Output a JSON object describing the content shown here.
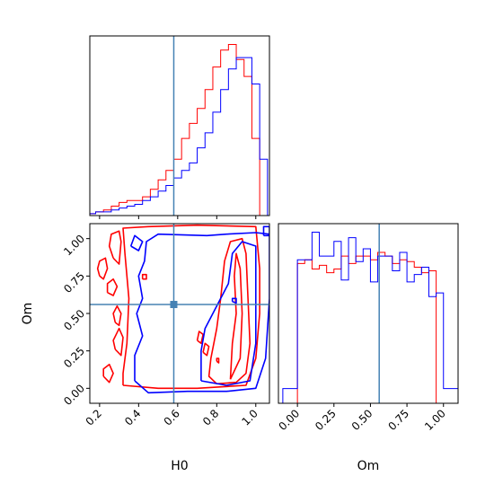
{
  "chart_data": {
    "type": "corner",
    "parameters": [
      "H0",
      "Om"
    ],
    "truth": {
      "H0": 0.58,
      "Om": 0.56
    },
    "colors": {
      "red": "#ff0000",
      "blue": "#0000ff",
      "truth": "#4682b4"
    },
    "panels": [
      {
        "id": "H0-hist",
        "type": "histogram",
        "xlim": [
          0.15,
          1.07
        ],
        "x_ticks": [
          0.2,
          0.4,
          0.6,
          0.8,
          1.0
        ],
        "show_tick_labels": false,
        "bin_edges": [
          0.1,
          0.14,
          0.18,
          0.22,
          0.26,
          0.3,
          0.34,
          0.38,
          0.42,
          0.46,
          0.5,
          0.54,
          0.58,
          0.62,
          0.66,
          0.7,
          0.74,
          0.78,
          0.82,
          0.86,
          0.9,
          0.94,
          0.98,
          1.02,
          1.06
        ],
        "series": [
          {
            "color": "red",
            "values": [
              0,
              1,
              2,
              3,
              5,
              7,
              8,
              8,
              10,
              14,
              19,
              24,
              30,
              41,
              49,
              57,
              67,
              79,
              88,
              91,
              83,
              74,
              41,
              0
            ]
          },
          {
            "color": "blue",
            "values": [
              0,
              1,
              2,
              2,
              3,
              4,
              5,
              6,
              8,
              10,
              13,
              16,
              20,
              24,
              28,
              36,
              44,
              55,
              67,
              78,
              84,
              84,
              70,
              30
            ]
          }
        ]
      },
      {
        "id": "Om-hist",
        "type": "histogram",
        "xlim": [
          -0.13,
          1.1
        ],
        "x_ticks": [
          0.0,
          0.25,
          0.5,
          0.75,
          1.0
        ],
        "x_tick_labels": [
          "0.00",
          "0.25",
          "0.50",
          "0.75",
          "1.00"
        ],
        "xlabel": "Om",
        "bin_edges": [
          -0.1,
          -0.05,
          0.0,
          0.05,
          0.1,
          0.15,
          0.2,
          0.25,
          0.3,
          0.35,
          0.4,
          0.45,
          0.5,
          0.55,
          0.6,
          0.65,
          0.7,
          0.75,
          0.8,
          0.85,
          0.9,
          0.95,
          1.0,
          1.05,
          1.1
        ],
        "series": [
          {
            "color": "red",
            "values": [
              0,
              0,
              76,
              78,
              73,
              75,
              71,
              73,
              80,
              76,
              80,
              80,
              78,
              82,
              80,
              76,
              78,
              77,
              74,
              71,
              72,
              0,
              0,
              0
            ]
          },
          {
            "color": "blue",
            "values": [
              8,
              8,
              78,
              78,
              93,
              80,
              80,
              88,
              67,
              90,
              77,
              84,
              66,
              80,
              80,
              72,
              82,
              66,
              70,
              74,
              58,
              60,
              8,
              8
            ]
          }
        ]
      },
      {
        "id": "H0-Om-2d",
        "type": "contour",
        "xlim": [
          0.15,
          1.07
        ],
        "ylim": [
          -0.1,
          1.1
        ],
        "x_ticks": [
          0.2,
          0.4,
          0.6,
          0.8,
          1.0
        ],
        "x_tick_labels": [
          "0.2",
          "0.4",
          "0.6",
          "0.8",
          "1.0"
        ],
        "y_ticks": [
          0.0,
          0.25,
          0.5,
          0.75,
          1.0
        ],
        "y_tick_labels": [
          "0.00",
          "0.25",
          "0.50",
          "0.75",
          "1.00"
        ],
        "xlabel": "H0",
        "ylabel": "Om",
        "contours": [
          {
            "color": "red",
            "points": [
              [
                0.32,
                0.02
              ],
              [
                0.5,
                0.0
              ],
              [
                0.7,
                0.0
              ],
              [
                0.95,
                0.02
              ],
              [
                1.0,
                0.2
              ],
              [
                1.02,
                0.5
              ],
              [
                1.02,
                0.8
              ],
              [
                1.0,
                1.08
              ],
              [
                0.7,
                1.09
              ],
              [
                0.45,
                1.08
              ],
              [
                0.32,
                1.07
              ],
              [
                0.33,
                0.9
              ],
              [
                0.35,
                0.6
              ],
              [
                0.34,
                0.3
              ],
              [
                0.32,
                0.1
              ],
              [
                0.32,
                0.02
              ]
            ]
          },
          {
            "color": "red",
            "points": [
              [
                0.8,
                0.03
              ],
              [
                0.9,
                0.04
              ],
              [
                0.95,
                0.1
              ],
              [
                0.97,
                0.3
              ],
              [
                0.96,
                0.6
              ],
              [
                0.95,
                0.9
              ],
              [
                0.93,
                1.0
              ],
              [
                0.87,
                0.98
              ],
              [
                0.84,
                0.85
              ],
              [
                0.82,
                0.6
              ],
              [
                0.8,
                0.4
              ],
              [
                0.77,
                0.2
              ],
              [
                0.76,
                0.08
              ],
              [
                0.8,
                0.03
              ]
            ]
          },
          {
            "color": "red",
            "points": [
              [
                0.87,
                0.06
              ],
              [
                0.92,
                0.2
              ],
              [
                0.93,
                0.5
              ],
              [
                0.92,
                0.8
              ],
              [
                0.9,
                0.9
              ],
              [
                0.89,
                0.75
              ],
              [
                0.9,
                0.5
              ],
              [
                0.88,
                0.3
              ],
              [
                0.87,
                0.06
              ]
            ]
          },
          {
            "color": "red",
            "points": [
              [
                0.27,
                0.87
              ],
              [
                0.3,
                0.83
              ],
              [
                0.31,
                0.98
              ],
              [
                0.3,
                1.05
              ],
              [
                0.26,
                1.03
              ],
              [
                0.25,
                0.95
              ],
              [
                0.27,
                0.87
              ]
            ]
          },
          {
            "color": "red",
            "points": [
              [
                0.2,
                0.75
              ],
              [
                0.22,
                0.73
              ],
              [
                0.24,
                0.8
              ],
              [
                0.23,
                0.87
              ],
              [
                0.2,
                0.85
              ],
              [
                0.19,
                0.8
              ],
              [
                0.2,
                0.75
              ]
            ]
          },
          {
            "color": "red",
            "points": [
              [
                0.24,
                0.64
              ],
              [
                0.27,
                0.62
              ],
              [
                0.29,
                0.68
              ],
              [
                0.27,
                0.73
              ],
              [
                0.24,
                0.7
              ],
              [
                0.24,
                0.64
              ]
            ]
          },
          {
            "color": "red",
            "points": [
              [
                0.28,
                0.44
              ],
              [
                0.3,
                0.42
              ],
              [
                0.31,
                0.5
              ],
              [
                0.29,
                0.55
              ],
              [
                0.27,
                0.5
              ],
              [
                0.28,
                0.44
              ]
            ]
          },
          {
            "color": "red",
            "points": [
              [
                0.28,
                0.26
              ],
              [
                0.31,
                0.22
              ],
              [
                0.32,
                0.34
              ],
              [
                0.3,
                0.4
              ],
              [
                0.27,
                0.32
              ],
              [
                0.28,
                0.26
              ]
            ]
          },
          {
            "color": "red",
            "points": [
              [
                0.22,
                0.08
              ],
              [
                0.25,
                0.04
              ],
              [
                0.27,
                0.1
              ],
              [
                0.25,
                0.16
              ],
              [
                0.22,
                0.13
              ],
              [
                0.22,
                0.08
              ]
            ]
          },
          {
            "color": "red",
            "points": [
              [
                0.42,
                0.73
              ],
              [
                0.44,
                0.73
              ],
              [
                0.44,
                0.76
              ],
              [
                0.42,
                0.76
              ],
              [
                0.42,
                0.73
              ]
            ]
          },
          {
            "color": "red",
            "points": [
              [
                0.7,
                0.32
              ],
              [
                0.72,
                0.3
              ],
              [
                0.73,
                0.36
              ],
              [
                0.71,
                0.38
              ],
              [
                0.7,
                0.32
              ]
            ]
          },
          {
            "color": "red",
            "points": [
              [
                0.73,
                0.24
              ],
              [
                0.75,
                0.22
              ],
              [
                0.76,
                0.28
              ],
              [
                0.74,
                0.3
              ],
              [
                0.73,
                0.24
              ]
            ]
          },
          {
            "color": "red",
            "points": [
              [
                0.8,
                0.18
              ],
              [
                0.81,
                0.17
              ],
              [
                0.81,
                0.2
              ],
              [
                0.8,
                0.2
              ],
              [
                0.8,
                0.18
              ]
            ]
          },
          {
            "color": "blue",
            "points": [
              [
                0.38,
                0.05
              ],
              [
                0.45,
                -0.03
              ],
              [
                0.65,
                -0.02
              ],
              [
                0.85,
                -0.02
              ],
              [
                1.0,
                0.0
              ],
              [
                1.05,
                0.2
              ],
              [
                1.07,
                0.6
              ],
              [
                1.07,
                1.03
              ],
              [
                1.0,
                1.04
              ],
              [
                0.85,
                1.03
              ],
              [
                0.75,
                1.02
              ],
              [
                0.5,
                1.03
              ],
              [
                0.44,
                0.98
              ],
              [
                0.43,
                0.85
              ],
              [
                0.4,
                0.75
              ],
              [
                0.42,
                0.6
              ],
              [
                0.39,
                0.5
              ],
              [
                0.42,
                0.35
              ],
              [
                0.38,
                0.22
              ],
              [
                0.38,
                0.05
              ]
            ]
          },
          {
            "color": "blue",
            "points": [
              [
                0.72,
                0.05
              ],
              [
                0.85,
                0.02
              ],
              [
                0.97,
                0.05
              ],
              [
                1.0,
                0.3
              ],
              [
                1.0,
                0.7
              ],
              [
                1.0,
                0.95
              ],
              [
                0.93,
                0.98
              ],
              [
                0.88,
                0.9
              ],
              [
                0.86,
                0.7
              ],
              [
                0.82,
                0.6
              ],
              [
                0.78,
                0.5
              ],
              [
                0.74,
                0.4
              ],
              [
                0.72,
                0.25
              ],
              [
                0.72,
                0.05
              ]
            ]
          },
          {
            "color": "blue",
            "points": [
              [
                0.36,
                0.95
              ],
              [
                0.4,
                0.92
              ],
              [
                0.42,
                0.98
              ],
              [
                0.38,
                1.02
              ],
              [
                0.36,
                0.95
              ]
            ]
          },
          {
            "color": "blue",
            "points": [
              [
                1.04,
                1.02
              ],
              [
                1.07,
                1.02
              ],
              [
                1.07,
                1.08
              ],
              [
                1.04,
                1.08
              ],
              [
                1.04,
                1.02
              ]
            ]
          },
          {
            "color": "blue",
            "points": [
              [
                0.88,
                0.58
              ],
              [
                0.9,
                0.57
              ],
              [
                0.9,
                0.6
              ],
              [
                0.88,
                0.6
              ],
              [
                0.88,
                0.58
              ]
            ]
          }
        ]
      }
    ]
  }
}
